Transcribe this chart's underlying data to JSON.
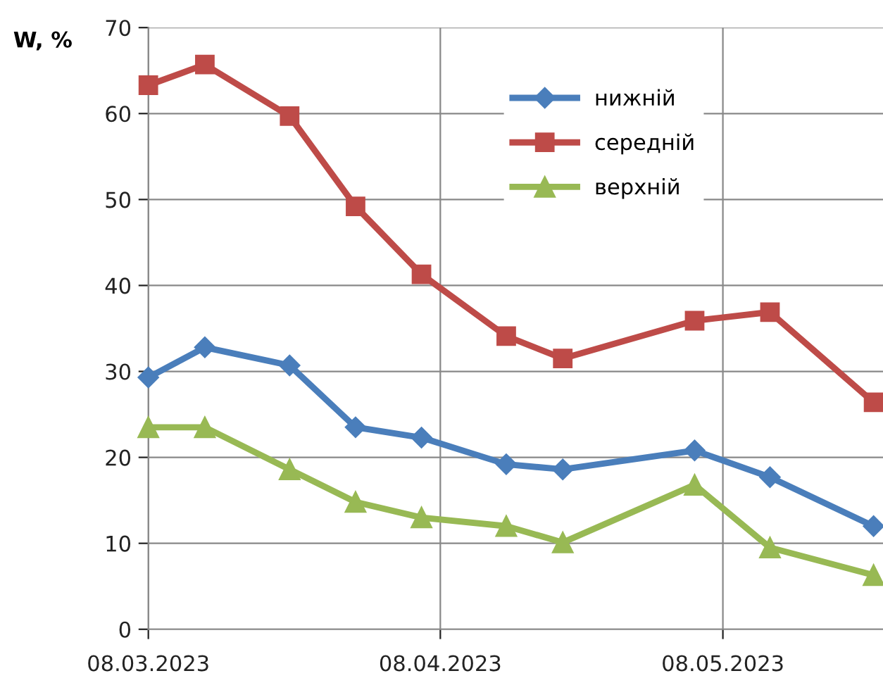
{
  "chart_data": {
    "type": "line",
    "ylabel": "W, %",
    "x": [
      "2023-03-08",
      "2023-03-14",
      "2023-03-23",
      "2023-03-30",
      "2023-04-06",
      "2023-04-15",
      "2023-04-21",
      "2023-05-05",
      "2023-05-13",
      "2023-05-24"
    ],
    "series": [
      {
        "name": "нижній",
        "color": "#4a7ebb",
        "marker": "diamond",
        "values": [
          29.3,
          32.8,
          30.7,
          23.5,
          22.3,
          19.2,
          18.6,
          20.8,
          17.7,
          12
        ]
      },
      {
        "name": "середній",
        "color": "#be4b48",
        "marker": "square",
        "values": [
          63.3,
          65.7,
          59.7,
          49.2,
          41.3,
          34.1,
          31.5,
          35.9,
          36.9,
          26.4
        ]
      },
      {
        "name": "верхній",
        "color": "#98b954",
        "marker": "triangle",
        "values": [
          23.5,
          23.5,
          18.6,
          14.8,
          13.0,
          12.0,
          10.1,
          16.8,
          9.5,
          6.3
        ]
      }
    ],
    "xlim": [
      "2023-03-08",
      "2023-05-25"
    ],
    "xticks": [
      {
        "value": "2023-03-08",
        "label": "08.03.2023"
      },
      {
        "value": "2023-04-08",
        "label": "08.04.2023"
      },
      {
        "value": "2023-05-08",
        "label": "08.05.2023"
      }
    ],
    "ylim": [
      0,
      70
    ],
    "yticks": [
      0,
      10,
      20,
      30,
      40,
      50,
      60,
      70
    ],
    "grid": true,
    "legend": "top",
    "line_style": "solid"
  }
}
